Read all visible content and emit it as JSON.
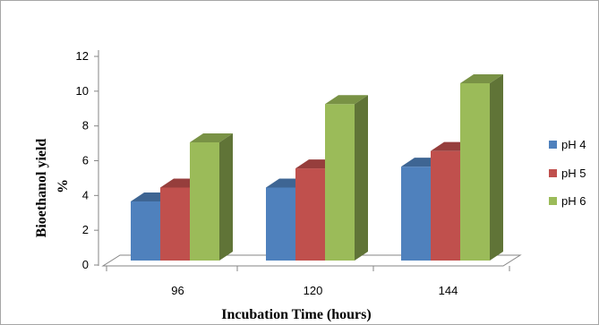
{
  "chart_data": {
    "type": "bar",
    "title": "",
    "xlabel": "Incubation Time (hours)",
    "ylabel": [
      "Bioethanol yield",
      "%"
    ],
    "categories": [
      "96",
      "120",
      "144"
    ],
    "series": [
      {
        "name": "pH 4",
        "values": [
          3.4,
          4.2,
          5.4
        ],
        "color": "#4f81bd"
      },
      {
        "name": "pH 5",
        "values": [
          4.2,
          5.3,
          6.3
        ],
        "color": "#c0504d"
      },
      {
        "name": "pH 6",
        "values": [
          6.8,
          9.0,
          10.2
        ],
        "color": "#9bbb59"
      }
    ],
    "ylim": [
      0,
      12
    ],
    "yticks": [
      "0",
      "2",
      "4",
      "6",
      "8",
      "10",
      "12"
    ],
    "grid": false,
    "legend_position": "right",
    "style": "3d-clustered-column"
  }
}
